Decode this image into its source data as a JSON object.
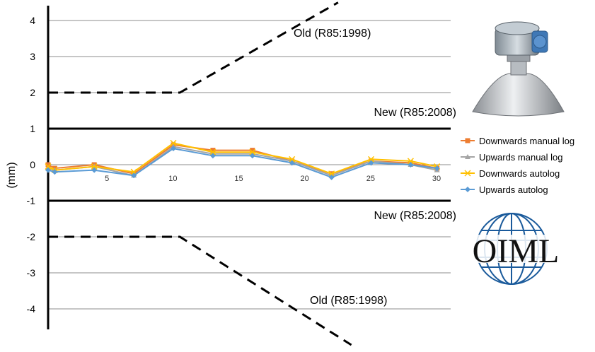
{
  "chart_data": {
    "type": "line",
    "ylabel": "(mm)",
    "ylim": [
      -4.5,
      4.5
    ],
    "y_ticks": [
      "4",
      "3",
      "2",
      "1",
      "0",
      "-1",
      "-2",
      "-3",
      "-4"
    ],
    "x_ticks": [
      "5",
      "10",
      "15",
      "20",
      "25",
      "30"
    ],
    "xlim": [
      0,
      30
    ],
    "grid": true,
    "legend_position": "right",
    "limit_lines": [
      {
        "label": "New (R85:2008)",
        "y": 1
      },
      {
        "label": "New (R85:2008)",
        "y": -1
      }
    ],
    "old_limits": [
      {
        "label": "Old (R85:1998)",
        "points": [
          [
            0,
            2
          ],
          [
            10,
            2
          ],
          [
            22,
            4.5
          ]
        ]
      },
      {
        "label": "Old (R85:1998)",
        "points": [
          [
            0,
            -2
          ],
          [
            10,
            -2
          ],
          [
            23,
            -5
          ]
        ]
      }
    ],
    "x": [
      0,
      0.5,
      3.5,
      6.5,
      9.5,
      12.5,
      15.5,
      18.5,
      21.5,
      24.5,
      27.5,
      29.5
    ],
    "series": [
      {
        "name": "Downwards manual log",
        "color": "#ED7D31",
        "marker": "square",
        "values": [
          0.0,
          -0.1,
          0.0,
          -0.25,
          0.55,
          0.4,
          0.4,
          0.1,
          -0.25,
          0.1,
          0.05,
          -0.1
        ]
      },
      {
        "name": "Upwards manual log",
        "color": "#A5A5A5",
        "marker": "triangle",
        "values": [
          -0.1,
          -0.15,
          -0.05,
          -0.3,
          0.5,
          0.3,
          0.3,
          0.1,
          -0.3,
          0.1,
          0.0,
          -0.15
        ]
      },
      {
        "name": "Downwards autolog",
        "color": "#FFC000",
        "marker": "x",
        "values": [
          -0.05,
          -0.15,
          -0.05,
          -0.2,
          0.6,
          0.35,
          0.35,
          0.15,
          -0.25,
          0.15,
          0.1,
          -0.05
        ]
      },
      {
        "name": "Upwards autolog",
        "color": "#5B9BD5",
        "marker": "diamond",
        "values": [
          -0.15,
          -0.2,
          -0.15,
          -0.3,
          0.45,
          0.25,
          0.25,
          0.05,
          -0.35,
          0.05,
          0.0,
          -0.1
        ]
      }
    ]
  },
  "logo": {
    "text": "OIML"
  }
}
